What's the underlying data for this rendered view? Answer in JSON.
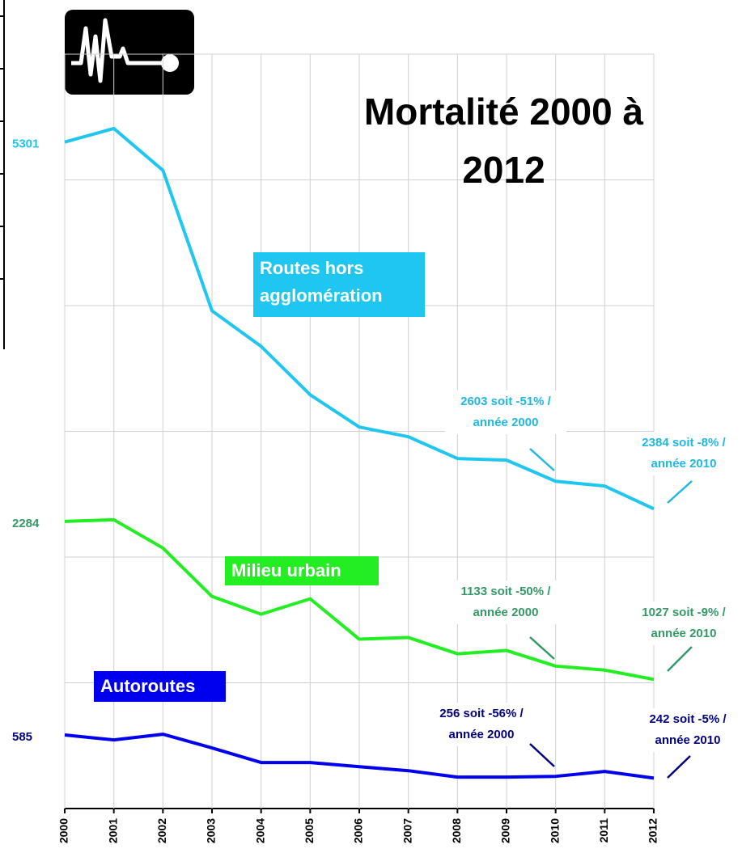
{
  "chart_data": {
    "type": "line",
    "title": "Mortalité 2000 à 2012",
    "categories": [
      "2000",
      "2001",
      "2002",
      "2003",
      "2004",
      "2005",
      "2006",
      "2007",
      "2008",
      "2009",
      "2010",
      "2011",
      "2012"
    ],
    "series": [
      {
        "name": "Routes hors agglomération",
        "color": "#1ec6f0",
        "label_color": "#1ec6f0",
        "values": [
          5301,
          5409,
          5076,
          3959,
          3676,
          3291,
          3034,
          2957,
          2784,
          2771,
          2603,
          2565,
          2384
        ]
      },
      {
        "name": "Milieu urbain",
        "color": "#22ee22",
        "label_color": "#339966",
        "values": [
          2284,
          2297,
          2072,
          1687,
          1546,
          1668,
          1347,
          1360,
          1231,
          1257,
          1133,
          1101,
          1027
        ]
      },
      {
        "name": "Autoroutes",
        "color": "#0000ee",
        "label_color": "#000080",
        "values": [
          585,
          546,
          591,
          482,
          366,
          366,
          333,
          301,
          250,
          250,
          256,
          295,
          242
        ]
      }
    ],
    "annotations": [
      {
        "lines": [
          "2603 soit -51% /",
          "année 2000"
        ],
        "color": "#1eb8e0"
      },
      {
        "lines": [
          "2384 soit -8% /",
          "année 2010"
        ],
        "color": "#1eb8e0"
      },
      {
        "lines": [
          "1133 soit -50% /",
          "année 2000"
        ],
        "color": "#339966"
      },
      {
        "lines": [
          "1027 soit -9% /",
          "année 2010"
        ],
        "color": "#339966"
      },
      {
        "lines": [
          "256 soit -56% /",
          "année 2000"
        ],
        "color": "#000080"
      },
      {
        "lines": [
          "242 soit -5% /",
          "année 2010"
        ],
        "color": "#000080"
      }
    ],
    "ylim": [
      0,
      6000
    ],
    "yticks": [
      0,
      1000,
      2000,
      3000,
      4000,
      5000,
      6000
    ],
    "grid": true
  }
}
